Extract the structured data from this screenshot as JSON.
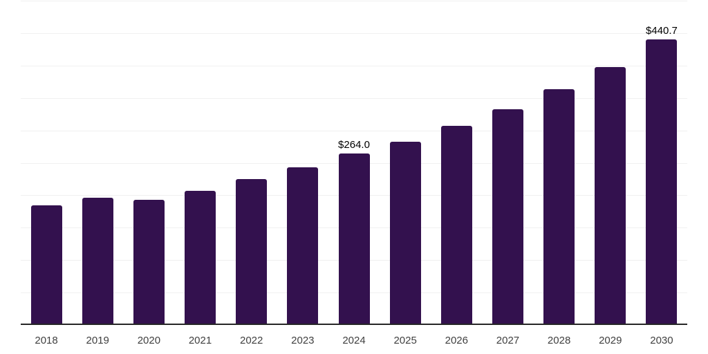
{
  "chart_data": {
    "type": "bar",
    "title": "",
    "xlabel": "",
    "ylabel": "",
    "categories": [
      "2018",
      "2019",
      "2020",
      "2021",
      "2022",
      "2023",
      "2024",
      "2025",
      "2026",
      "2027",
      "2028",
      "2029",
      "2030"
    ],
    "values": [
      184,
      196,
      193,
      207,
      225,
      243,
      264.0,
      283,
      307,
      333,
      364,
      398,
      440.7
    ],
    "data_labels": [
      {
        "index": 6,
        "text": "$264.0"
      },
      {
        "index": 12,
        "text": "$440.7"
      }
    ],
    "ylim": [
      0,
      500
    ],
    "grid": true,
    "grid_step": 50,
    "y_axis_labels_shown": false,
    "legend": "none",
    "colors": {
      "bar": "#33114E",
      "gridline": "#f0f0f0",
      "axis_line": "#262626",
      "tick_label": "#3f3f3f",
      "value_label": "#000000",
      "background": "#ffffff"
    }
  }
}
